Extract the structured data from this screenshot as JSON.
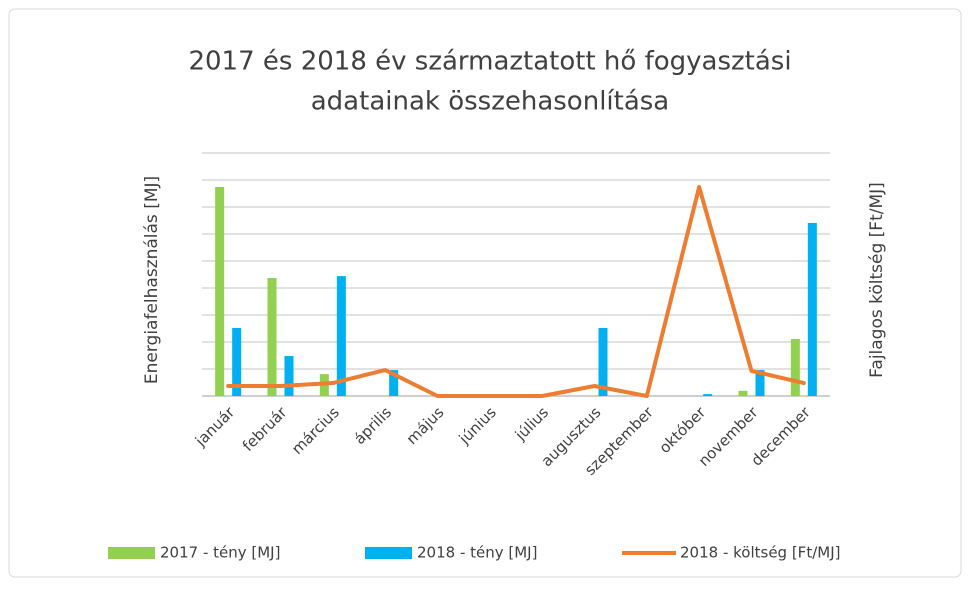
{
  "chart_data": {
    "type": "bar_line",
    "title": [
      "2017 és 2018 év származtatott hő fogyasztási",
      "adatainak összehasonlítása"
    ],
    "y_label": "Energiafelhasználás [MJ]",
    "y2_label": "Fajlagos költség [Ft/MJ]",
    "categories": [
      "január",
      "február",
      "március",
      "április",
      "május",
      "június",
      "július",
      "augusztus",
      "szeptember",
      "október",
      "november",
      "december"
    ],
    "series": [
      {
        "name": "2017 - tény [MJ]",
        "type": "bar",
        "color": "#92d050",
        "values": [
          7.74,
          4.37,
          0.81,
          0,
          0,
          0,
          0,
          0,
          0,
          0,
          0.19,
          2.11
        ]
      },
      {
        "name": "2018 - tény [MJ]",
        "type": "bar",
        "color": "#00b0f0",
        "values": [
          2.52,
          1.48,
          4.44,
          0.96,
          0,
          0,
          0,
          2.52,
          0,
          0.07,
          0.96,
          6.41
        ]
      },
      {
        "name": "2018 - költség [Ft/MJ]",
        "type": "line",
        "axis": "y2",
        "color": "#ed7d31",
        "values": [
          0.37,
          0.37,
          0.48,
          0.96,
          0,
          0,
          0,
          0.37,
          0,
          7.74,
          0.93,
          0.48
        ]
      }
    ],
    "ylim": [
      0,
      9
    ],
    "yticks": [
      0,
      1,
      2,
      3,
      4,
      5,
      6,
      7,
      8,
      9
    ],
    "y2lim": [
      0,
      9
    ],
    "grid": true,
    "legend": "bottom"
  }
}
